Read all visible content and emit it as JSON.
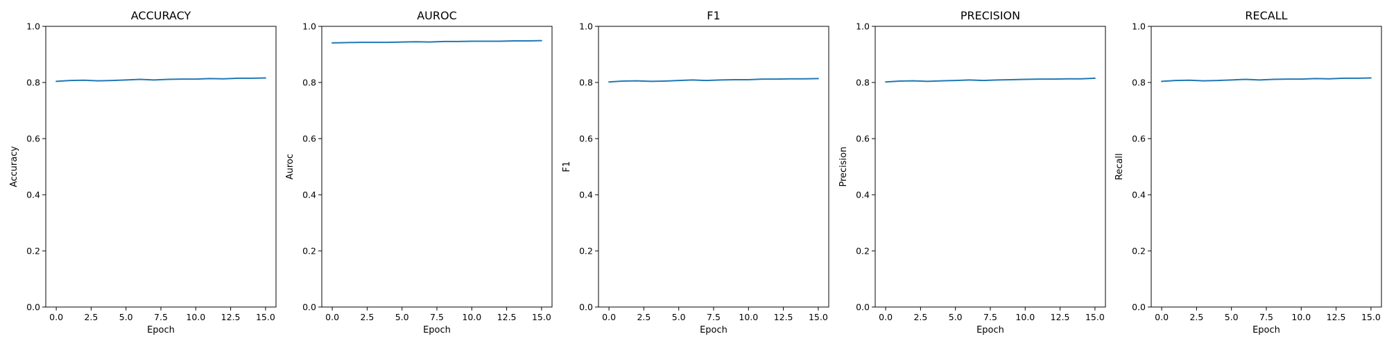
{
  "chart_data": [
    {
      "type": "line",
      "title": "ACCURACY",
      "xlabel": "Epoch",
      "ylabel": "Accuracy",
      "ylim": [
        0,
        1.0
      ],
      "xlim": [
        -0.75,
        15.75
      ],
      "xticks": [
        0.0,
        2.5,
        5.0,
        7.5,
        10.0,
        12.5,
        15.0
      ],
      "xtick_labels": [
        "0.0",
        "2.5",
        "5.0",
        "7.5",
        "10.0",
        "12.5",
        "15.0"
      ],
      "yticks": [
        0.0,
        0.2,
        0.4,
        0.6,
        0.8,
        1.0
      ],
      "ytick_labels": [
        "0.0",
        "0.2",
        "0.4",
        "0.6",
        "0.8",
        "1.0"
      ],
      "grid": false,
      "series": [
        {
          "color": "#1f77b4",
          "x": [
            0,
            1,
            2,
            3,
            4,
            5,
            6,
            7,
            8,
            9,
            10,
            11,
            12,
            13,
            14,
            15
          ],
          "y": [
            0.804,
            0.807,
            0.808,
            0.806,
            0.807,
            0.809,
            0.811,
            0.809,
            0.811,
            0.812,
            0.812,
            0.814,
            0.813,
            0.815,
            0.815,
            0.816
          ]
        }
      ]
    },
    {
      "type": "line",
      "title": "AUROC",
      "xlabel": "Epoch",
      "ylabel": "Auroc",
      "ylim": [
        0,
        1.0
      ],
      "xlim": [
        -0.75,
        15.75
      ],
      "xticks": [
        0.0,
        2.5,
        5.0,
        7.5,
        10.0,
        12.5,
        15.0
      ],
      "xtick_labels": [
        "0.0",
        "2.5",
        "5.0",
        "7.5",
        "10.0",
        "12.5",
        "15.0"
      ],
      "yticks": [
        0.0,
        0.2,
        0.4,
        0.6,
        0.8,
        1.0
      ],
      "ytick_labels": [
        "0.0",
        "0.2",
        "0.4",
        "0.6",
        "0.8",
        "1.0"
      ],
      "grid": false,
      "series": [
        {
          "color": "#1f77b4",
          "x": [
            0,
            1,
            2,
            3,
            4,
            5,
            6,
            7,
            8,
            9,
            10,
            11,
            12,
            13,
            14,
            15
          ],
          "y": [
            0.941,
            0.942,
            0.943,
            0.943,
            0.943,
            0.944,
            0.945,
            0.944,
            0.946,
            0.946,
            0.947,
            0.947,
            0.947,
            0.948,
            0.948,
            0.949
          ]
        }
      ]
    },
    {
      "type": "line",
      "title": "F1",
      "xlabel": "Epoch",
      "ylabel": "F1",
      "ylim": [
        0,
        1.0
      ],
      "xlim": [
        -0.75,
        15.75
      ],
      "xticks": [
        0.0,
        2.5,
        5.0,
        7.5,
        10.0,
        12.5,
        15.0
      ],
      "xtick_labels": [
        "0.0",
        "2.5",
        "5.0",
        "7.5",
        "10.0",
        "12.5",
        "15.0"
      ],
      "yticks": [
        0.0,
        0.2,
        0.4,
        0.6,
        0.8,
        1.0
      ],
      "ytick_labels": [
        "0.0",
        "0.2",
        "0.4",
        "0.6",
        "0.8",
        "1.0"
      ],
      "grid": false,
      "series": [
        {
          "color": "#1f77b4",
          "x": [
            0,
            1,
            2,
            3,
            4,
            5,
            6,
            7,
            8,
            9,
            10,
            11,
            12,
            13,
            14,
            15
          ],
          "y": [
            0.802,
            0.805,
            0.806,
            0.804,
            0.805,
            0.807,
            0.809,
            0.807,
            0.809,
            0.81,
            0.81,
            0.812,
            0.812,
            0.813,
            0.813,
            0.814
          ]
        }
      ]
    },
    {
      "type": "line",
      "title": "PRECISION",
      "xlabel": "Epoch",
      "ylabel": "Precision",
      "ylim": [
        0,
        1.0
      ],
      "xlim": [
        -0.75,
        15.75
      ],
      "xticks": [
        0.0,
        2.5,
        5.0,
        7.5,
        10.0,
        12.5,
        15.0
      ],
      "xtick_labels": [
        "0.0",
        "2.5",
        "5.0",
        "7.5",
        "10.0",
        "12.5",
        "15.0"
      ],
      "yticks": [
        0.0,
        0.2,
        0.4,
        0.6,
        0.8,
        1.0
      ],
      "ytick_labels": [
        "0.0",
        "0.2",
        "0.4",
        "0.6",
        "0.8",
        "1.0"
      ],
      "grid": false,
      "series": [
        {
          "color": "#1f77b4",
          "x": [
            0,
            1,
            2,
            3,
            4,
            5,
            6,
            7,
            8,
            9,
            10,
            11,
            12,
            13,
            14,
            15
          ],
          "y": [
            0.802,
            0.805,
            0.806,
            0.804,
            0.806,
            0.807,
            0.809,
            0.807,
            0.809,
            0.81,
            0.811,
            0.812,
            0.812,
            0.813,
            0.813,
            0.815
          ]
        }
      ]
    },
    {
      "type": "line",
      "title": "RECALL",
      "xlabel": "Epoch",
      "ylabel": "Recall",
      "ylim": [
        0,
        1.0
      ],
      "xlim": [
        -0.75,
        15.75
      ],
      "xticks": [
        0.0,
        2.5,
        5.0,
        7.5,
        10.0,
        12.5,
        15.0
      ],
      "xtick_labels": [
        "0.0",
        "2.5",
        "5.0",
        "7.5",
        "10.0",
        "12.5",
        "15.0"
      ],
      "yticks": [
        0.0,
        0.2,
        0.4,
        0.6,
        0.8,
        1.0
      ],
      "ytick_labels": [
        "0.0",
        "0.2",
        "0.4",
        "0.6",
        "0.8",
        "1.0"
      ],
      "grid": false,
      "series": [
        {
          "color": "#1f77b4",
          "x": [
            0,
            1,
            2,
            3,
            4,
            5,
            6,
            7,
            8,
            9,
            10,
            11,
            12,
            13,
            14,
            15
          ],
          "y": [
            0.804,
            0.807,
            0.808,
            0.806,
            0.807,
            0.809,
            0.811,
            0.809,
            0.811,
            0.812,
            0.812,
            0.814,
            0.813,
            0.815,
            0.815,
            0.816
          ]
        }
      ]
    }
  ]
}
